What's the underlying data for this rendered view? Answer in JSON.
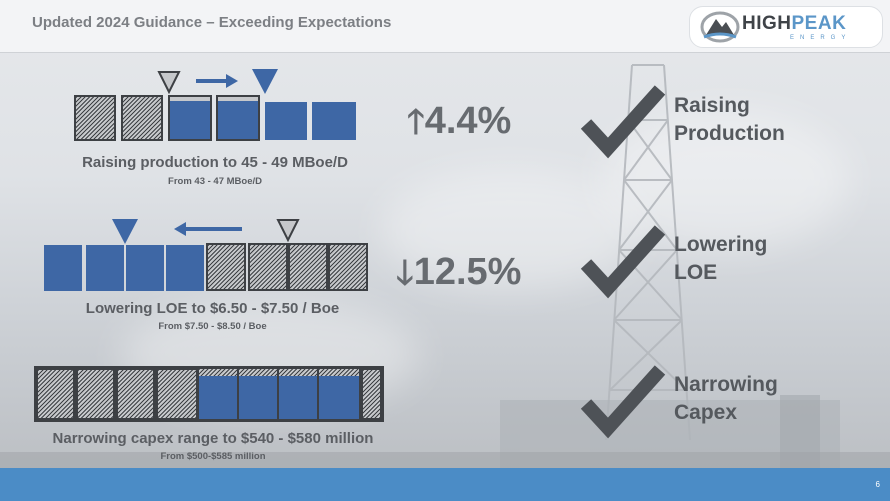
{
  "header": {
    "title": "Updated 2024 Guidance – Exceeding Expectations",
    "logo_text_dark": "HIGH",
    "logo_text_light": "PEAK",
    "logo_subtext": "ENERGY"
  },
  "rows": [
    {
      "label": "Raising production to 45 - 49 MBoe/D",
      "sub": "From 43 - 47 MBoe/D",
      "change": "4.4%",
      "direction": "up",
      "check_label_1": "Raising",
      "check_label_2": "Production"
    },
    {
      "label": "Lowering LOE to $6.50 - $7.50 / Boe",
      "sub": "From $7.50 - $8.50 / Boe",
      "change": "12.5%",
      "direction": "down",
      "check_label_1": "Lowering",
      "check_label_2": "LOE"
    },
    {
      "label": "Narrowing capex range to $540 - $580 million",
      "sub": "From $500-$585 million",
      "check_label_1": "Narrowing",
      "check_label_2": "Capex"
    }
  ],
  "arrows": {
    "up": "🡑",
    "down": "🡓"
  },
  "page_number": "6",
  "colors": {
    "accent_blue": "#3e67a5",
    "footer_blue": "#4b8cc6",
    "logo_blue": "#5b96c8",
    "text_gray": "#5b5e63"
  }
}
